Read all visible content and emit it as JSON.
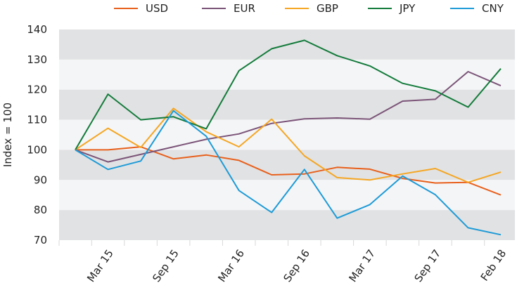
{
  "chart_data": {
    "type": "line",
    "title": "",
    "xlabel": "",
    "ylabel": "Index = 100",
    "ylim": [
      70,
      140
    ],
    "yticks": [
      70,
      80,
      90,
      100,
      110,
      120,
      130,
      140
    ],
    "grid": "alternating horizontal bands",
    "legend": "top",
    "categories": [
      "",
      "Mar 15",
      "",
      "Sep 15",
      "",
      "Mar 16",
      "",
      "Sep 16",
      "",
      "Mar 17",
      "",
      "Sep 17",
      "",
      "Feb 18"
    ],
    "series": [
      {
        "name": "USD",
        "color": "#e8601c",
        "values": [
          100,
          100,
          101,
          97,
          98.3,
          96.5,
          91.7,
          92,
          94.2,
          93.6,
          90.5,
          89,
          89.2,
          85
        ]
      },
      {
        "name": "EUR",
        "color": "#7b5478",
        "values": [
          100,
          96,
          98.5,
          101,
          103.5,
          105.3,
          108.8,
          110.3,
          110.6,
          110.2,
          116.2,
          116.8,
          126,
          121.3
        ]
      },
      {
        "name": "GBP",
        "color": "#f5a623",
        "values": [
          100,
          107.2,
          100.8,
          113.8,
          106,
          101,
          110.2,
          98,
          90.8,
          90,
          92,
          93.8,
          89.2,
          92.6
        ]
      },
      {
        "name": "JPY",
        "color": "#137b3b",
        "values": [
          100,
          118.5,
          110,
          111,
          107,
          126.3,
          133.6,
          136.4,
          131.3,
          127.9,
          122.1,
          119.6,
          114.2,
          127
        ]
      },
      {
        "name": "CNY",
        "color": "#1e9bd7",
        "values": [
          100,
          93.5,
          96.3,
          113,
          104.5,
          86.5,
          79.2,
          93.5,
          77.3,
          81.8,
          91.3,
          85.1,
          74.1,
          71.8
        ]
      }
    ],
    "band_colors": [
      "#e1e2e3",
      "#f4f5f7"
    ]
  }
}
